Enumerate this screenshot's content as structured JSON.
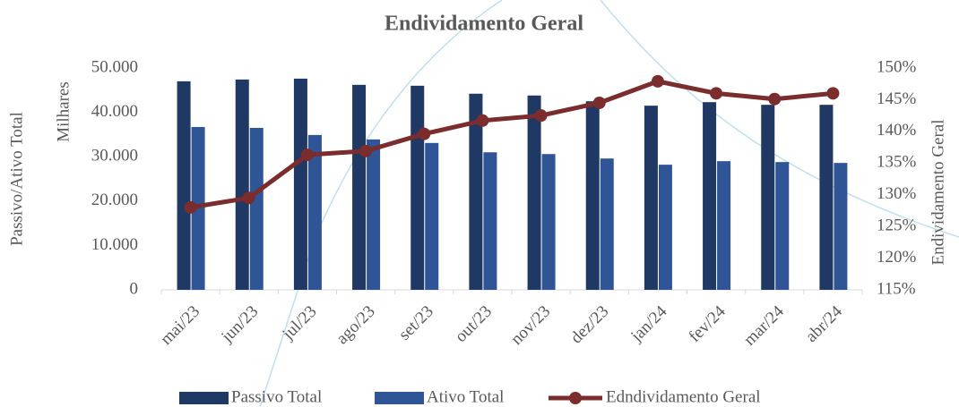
{
  "chart_data": {
    "type": "bar",
    "title": "Endividamento Geral",
    "y_axis_label": "Passivo/Ativo Total",
    "y_axis_unit": "Milhares",
    "y2_axis_label": "Endividamento Geral",
    "categories": [
      "mai/23",
      "jun/23",
      "jul/23",
      "ago/23",
      "set/23",
      "out/23",
      "nov/23",
      "dez/23",
      "jan/24",
      "fev/24",
      "mar/24",
      "abr/24"
    ],
    "series": [
      {
        "name": "Passivo Total",
        "type": "bar",
        "color": "#1f3864",
        "values": [
          47000,
          47400,
          47600,
          46200,
          46000,
          44200,
          43800,
          42500,
          41500,
          42300,
          41700,
          41700
        ]
      },
      {
        "name": "Ativo Total",
        "type": "bar",
        "color": "#2f5597",
        "values": [
          36700,
          36500,
          34900,
          33900,
          33100,
          31000,
          30600,
          29600,
          28200,
          29000,
          28800,
          28600
        ]
      },
      {
        "name": "Edndividamento Geral",
        "type": "line",
        "axis": "y2",
        "color": "#7b2c2c",
        "values": [
          128.0,
          129.5,
          136.3,
          136.9,
          139.6,
          141.7,
          142.5,
          144.5,
          147.9,
          146.0,
          145.1,
          146.0
        ]
      }
    ],
    "ylim": [
      0,
      50000
    ],
    "yticks": [
      0,
      {
        "value": 10000,
        "label": "10.000"
      },
      {
        "value": 20000,
        "label": "20.000"
      },
      {
        "value": 30000,
        "label": "30.000"
      },
      {
        "value": 40000,
        "label": "40.000"
      },
      {
        "value": 50000,
        "label": "50.000"
      }
    ],
    "y2lim": [
      115,
      150
    ],
    "y2ticks": [
      {
        "value": 115,
        "label": "115%"
      },
      {
        "value": 120,
        "label": "120%"
      },
      {
        "value": 125,
        "label": "125%"
      },
      {
        "value": 130,
        "label": "130%"
      },
      {
        "value": 135,
        "label": "135%"
      },
      {
        "value": 140,
        "label": "140%"
      },
      {
        "value": 145,
        "label": "145%"
      },
      {
        "value": 150,
        "label": "150%"
      }
    ],
    "grid": false,
    "legend": "bottom"
  }
}
